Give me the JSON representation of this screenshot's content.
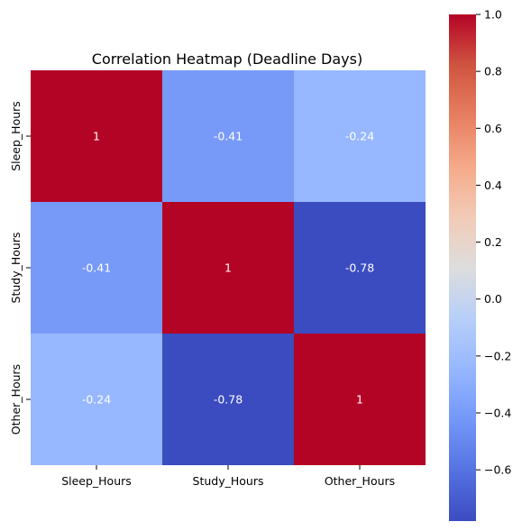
{
  "chart_data": {
    "type": "heatmap",
    "title": "Correlation Heatmap (Deadline Days)",
    "x_categories": [
      "Sleep_Hours",
      "Study_Hours",
      "Other_Hours"
    ],
    "y_categories": [
      "Sleep_Hours",
      "Study_Hours",
      "Other_Hours"
    ],
    "values": [
      [
        1,
        -0.41,
        -0.24
      ],
      [
        -0.41,
        1,
        -0.78
      ],
      [
        -0.24,
        -0.78,
        1
      ]
    ],
    "cell_labels": [
      [
        "1",
        "-0.41",
        "-0.24"
      ],
      [
        "-0.41",
        "1",
        "-0.78"
      ],
      [
        "-0.24",
        "-0.78",
        "1"
      ]
    ],
    "colormap": "coolwarm",
    "vmin": -0.78,
    "vmax": 1.0,
    "colorbar_ticks": [
      1.0,
      0.8,
      0.6,
      0.4,
      0.2,
      0.0,
      -0.2,
      -0.4,
      -0.6
    ],
    "colorbar_tick_labels": [
      "1.0",
      "0.8",
      "0.6",
      "0.4",
      "0.2",
      "0.0",
      "−0.2",
      "−0.4",
      "−0.6"
    ],
    "xlabel": "",
    "ylabel": "",
    "legend": "colorbar-right"
  }
}
